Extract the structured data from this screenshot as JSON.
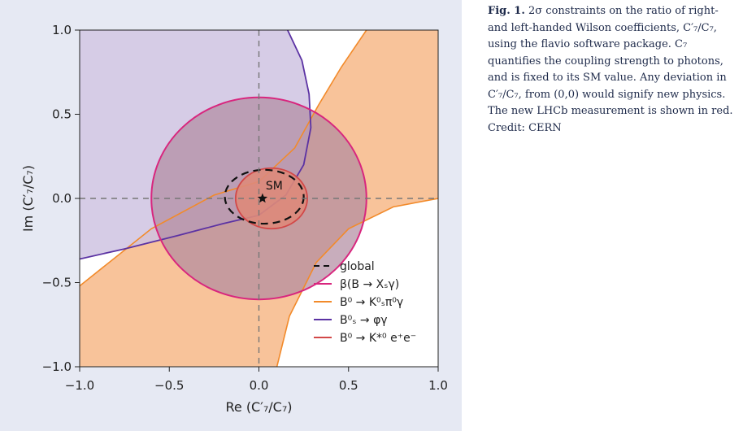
{
  "caption": {
    "lead": "Fig. 1.",
    "body": "2σ constraints on the ratio of right- and left-handed Wilson coefficients, C′₇/C₇, using the flavio software package. C₇ quantifies the coupling strength to photons, and is fixed to its SM value. Any deviation in C′₇/C₇, from (0,0) would signify new physics. The new LHCb measurement is shown in red. Credit: CERN"
  },
  "chart_data": {
    "type": "scatter",
    "xlabel": "Re (C′₇/C₇)",
    "ylabel": "Im (C′₇/C₇)",
    "xlim": [
      -1.0,
      1.0
    ],
    "ylim": [
      -1.0,
      1.0
    ],
    "x_ticks": [
      "−1.0",
      "−0.5",
      "0.0",
      "0.5",
      "1.0"
    ],
    "y_ticks": [
      "1.0",
      "0.5",
      "0.0",
      "−0.5",
      "−1.0"
    ],
    "x_tick_values": [
      -1.0,
      -0.5,
      0.0,
      0.5,
      1.0
    ],
    "y_tick_values": [
      1.0,
      0.5,
      0.0,
      -0.5,
      -1.0
    ],
    "reference_lines": {
      "x": 0.0,
      "y": 0.0,
      "style": "dashed"
    },
    "sm_point": {
      "label": "SM",
      "x": 0.02,
      "y": 0.0,
      "marker": "star"
    },
    "regions": [
      {
        "name": "B⁰ → K*⁰ e⁺e⁻",
        "shape": "ellipse",
        "center": [
          0.07,
          0.0
        ],
        "rx": 0.2,
        "ry": 0.18,
        "color": "#d24848",
        "fill": "#dd8a7a"
      },
      {
        "name": "β(B → Xₛγ)",
        "shape": "circle",
        "center": [
          0.0,
          0.0
        ],
        "radius": 0.6,
        "color": "#d8267e",
        "fill": "#b08aa0"
      },
      {
        "name": "B⁰ₛ → φγ",
        "shape": "band",
        "boundary": [
          [
            0.16,
            1.0
          ],
          [
            0.24,
            0.82
          ],
          [
            0.28,
            0.62
          ],
          [
            0.29,
            0.42
          ],
          [
            0.25,
            0.2
          ],
          [
            0.15,
            0.02
          ],
          [
            0.0,
            -0.1
          ],
          [
            -0.2,
            -0.15
          ],
          [
            -0.45,
            -0.22
          ],
          [
            -0.75,
            -0.3
          ],
          [
            -1.0,
            -0.36
          ]
        ],
        "color": "#5b32a3",
        "fill": "#cfc3e2"
      },
      {
        "name": "B⁰ → K⁰ₛπ⁰γ",
        "shape": "band",
        "upper_boundary": [
          [
            -1.0,
            -0.52
          ],
          [
            -0.6,
            -0.18
          ],
          [
            -0.25,
            0.02
          ],
          [
            0.0,
            0.1
          ],
          [
            0.2,
            0.3
          ],
          [
            0.33,
            0.55
          ],
          [
            0.46,
            0.78
          ],
          [
            0.6,
            1.0
          ]
        ],
        "lower_boundary": [
          [
            0.1,
            -1.0
          ],
          [
            0.17,
            -0.7
          ],
          [
            0.32,
            -0.38
          ],
          [
            0.5,
            -0.18
          ],
          [
            0.75,
            -0.05
          ],
          [
            1.0,
            0.0
          ]
        ],
        "color": "#f28a2a",
        "fill": "#f8c39a"
      },
      {
        "name": "global",
        "shape": "ellipse",
        "center": [
          0.03,
          0.01
        ],
        "rx": 0.22,
        "ry": 0.16,
        "style": "dashed",
        "color": "#111111"
      }
    ],
    "legend": {
      "placement": "bottom-right",
      "entries": [
        {
          "label": "global",
          "color": "#111111",
          "style": "dashed"
        },
        {
          "label": "β(B → Xₛγ)",
          "color": "#d8267e",
          "style": "solid"
        },
        {
          "label": "B⁰ → K⁰ₛπ⁰γ",
          "color": "#f28a2a",
          "style": "solid"
        },
        {
          "label": "B⁰ₛ → φγ",
          "color": "#5b32a3",
          "style": "solid"
        },
        {
          "label": "B⁰ → K*⁰ e⁺e⁻",
          "color": "#d24848",
          "style": "solid"
        }
      ]
    },
    "grid": false
  }
}
